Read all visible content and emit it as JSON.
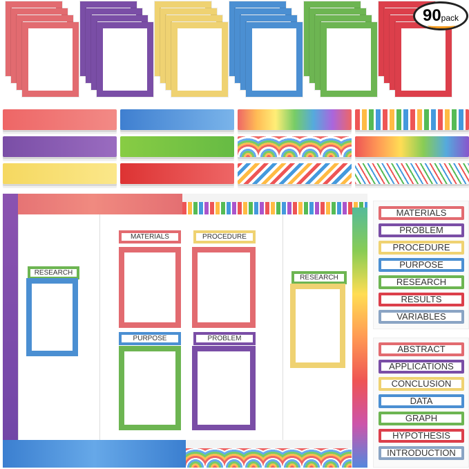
{
  "badge": {
    "count": "90",
    "unit": "pack"
  },
  "colors": {
    "red": "#e26b70",
    "purple": "#7a4ea6",
    "yellow": "#efd272",
    "blue": "#4b8fd2",
    "green": "#6db552",
    "crimson": "#dc3f4b",
    "slate": "#8aa4c4"
  },
  "board": {
    "materials": "MATERIALS",
    "procedure": "PROCEDURE",
    "purpose": "PURPOSE",
    "problem": "PROBLEM",
    "research_left": "RESEARCH",
    "research_right": "RESEARCH"
  },
  "labels_group1": [
    "MATERIALS",
    "PROBLEM",
    "PROCEDURE",
    "PURPOSE",
    "RESEARCH",
    "RESULTS",
    "VARIABLES"
  ],
  "labels_group2": [
    "ABSTRACT",
    "APPLICATIONS",
    "CONCLUSION",
    "DATA",
    "GRAPH",
    "HYPOTHESIS",
    "INTRODUCTION"
  ]
}
